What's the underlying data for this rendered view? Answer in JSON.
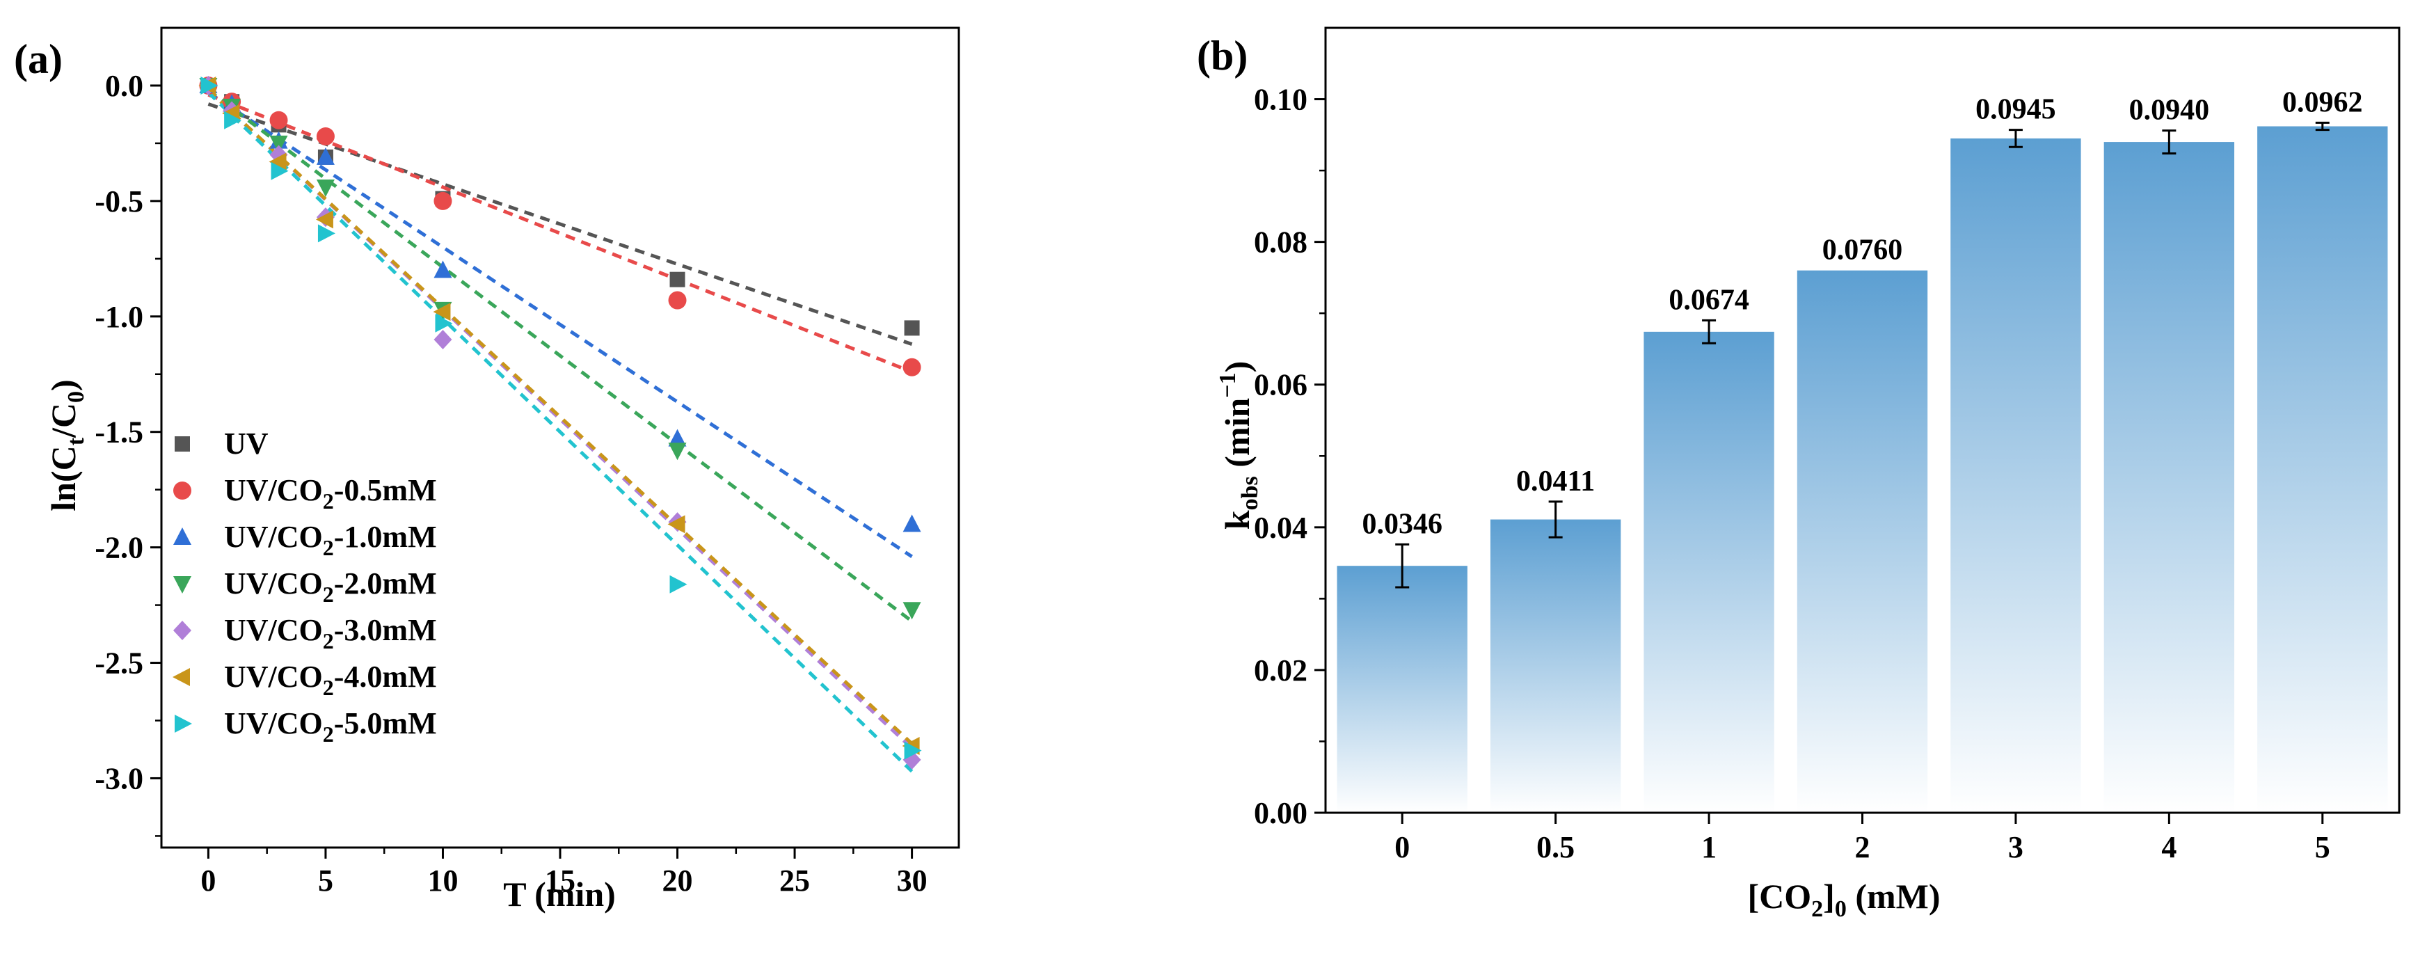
{
  "chart_data": [
    {
      "panel_label": "(a)",
      "type": "scatter",
      "xlabel": "T (min)",
      "ylabel": {
        "pre": "ln(C",
        "sub1": "t",
        "mid": "/C",
        "sub2": "0",
        "post": ")"
      },
      "xlim": [
        -2,
        32
      ],
      "ylim": [
        -3.3,
        0.25
      ],
      "xticks": [
        0,
        5,
        10,
        15,
        20,
        25,
        30
      ],
      "yticks": [
        0.0,
        -0.5,
        -1.0,
        -1.5,
        -2.0,
        -2.5,
        -3.0
      ],
      "ytick_labels": [
        "0.0",
        "-0.5",
        "-1.0",
        "-1.5",
        "-2.0",
        "-2.5",
        "-3.0"
      ],
      "legend_position": "bottom-left",
      "x": [
        0,
        1,
        3,
        5,
        10,
        20,
        30
      ],
      "series": [
        {
          "name": {
            "pre": "UV",
            "sub": "",
            "post": ""
          },
          "color": "#555555",
          "marker": "square",
          "values": [
            0.0,
            -0.07,
            -0.17,
            -0.31,
            -0.49,
            -0.84,
            -1.05
          ],
          "fit": [
            -0.08,
            -1.12
          ]
        },
        {
          "name": {
            "pre": "UV/CO",
            "sub": "2",
            "post": "-0.5mM"
          },
          "color": "#e84a4a",
          "marker": "circle",
          "values": [
            0.0,
            -0.07,
            -0.15,
            -0.22,
            -0.5,
            -0.93,
            -1.22
          ],
          "fit": [
            -0.04,
            -1.24
          ]
        },
        {
          "name": {
            "pre": "UV/CO",
            "sub": "2",
            "post": "-1.0mM"
          },
          "color": "#2f6fd6",
          "marker": "triangle-up",
          "values": [
            0.0,
            -0.08,
            -0.24,
            -0.31,
            -0.8,
            -1.53,
            -1.9
          ],
          "fit": [
            -0.03,
            -2.04
          ]
        },
        {
          "name": {
            "pre": "UV/CO",
            "sub": "2",
            "post": "-2.0mM"
          },
          "color": "#3aa65a",
          "marker": "triangle-down",
          "values": [
            0.0,
            -0.09,
            -0.25,
            -0.44,
            -0.97,
            -1.58,
            -2.27
          ],
          "fit": [
            -0.02,
            -2.32
          ]
        },
        {
          "name": {
            "pre": "UV/CO",
            "sub": "2",
            "post": "-3.0mM"
          },
          "color": "#b07fd8",
          "marker": "diamond",
          "values": [
            0.0,
            -0.11,
            -0.3,
            -0.57,
            -1.1,
            -1.89,
            -2.92
          ],
          "fit": [
            -0.02,
            -2.87
          ]
        },
        {
          "name": {
            "pre": "UV/CO",
            "sub": "2",
            "post": "-4.0mM"
          },
          "color": "#c9951a",
          "marker": "triangle-left",
          "values": [
            0.0,
            -0.12,
            -0.33,
            -0.58,
            -0.98,
            -1.9,
            -2.86
          ],
          "fit": [
            -0.02,
            -2.85
          ]
        },
        {
          "name": {
            "pre": "UV/CO",
            "sub": "2",
            "post": "-5.0mM"
          },
          "color": "#22c3cf",
          "marker": "triangle-right",
          "values": [
            0.0,
            -0.15,
            -0.37,
            -0.64,
            -1.03,
            -2.16,
            -2.88
          ],
          "fit": [
            -0.03,
            -2.97
          ]
        }
      ]
    },
    {
      "panel_label": "(b)",
      "type": "bar",
      "xlabel": {
        "pre": "[CO",
        "sub": "2",
        "post": "]",
        "sub2": "0",
        "post2": " (mM)"
      },
      "ylabel": {
        "pre": "k",
        "sub": "obs",
        "mid": " (min",
        "sup": "−1",
        "post": ")"
      },
      "categories": [
        "0",
        "0.5",
        "1",
        "2",
        "3",
        "4",
        "5"
      ],
      "values": [
        0.0346,
        0.0411,
        0.0674,
        0.076,
        0.0945,
        0.094,
        0.0962
      ],
      "value_labels": [
        "0.0346",
        "0.0411",
        "0.0674",
        "0.0760",
        "0.0945",
        "0.0940",
        "0.0962"
      ],
      "errors": [
        0.003,
        0.0025,
        0.0016,
        0.0,
        0.0012,
        0.0016,
        0.0005
      ],
      "ylim": [
        0,
        0.11
      ],
      "yticks": [
        0.0,
        0.02,
        0.04,
        0.06,
        0.08,
        0.1
      ],
      "ytick_labels": [
        "0.00",
        "0.02",
        "0.04",
        "0.06",
        "0.08",
        "0.10"
      ],
      "bar_color": "#5c9fd2"
    }
  ]
}
